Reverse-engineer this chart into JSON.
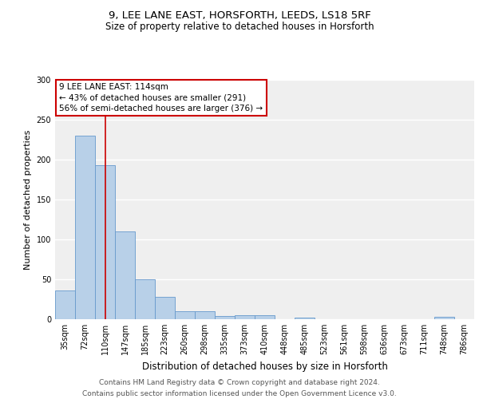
{
  "title1": "9, LEE LANE EAST, HORSFORTH, LEEDS, LS18 5RF",
  "title2": "Size of property relative to detached houses in Horsforth",
  "xlabel": "Distribution of detached houses by size in Horsforth",
  "ylabel": "Number of detached properties",
  "bar_labels": [
    "35sqm",
    "72sqm",
    "110sqm",
    "147sqm",
    "185sqm",
    "223sqm",
    "260sqm",
    "298sqm",
    "335sqm",
    "373sqm",
    "410sqm",
    "448sqm",
    "485sqm",
    "523sqm",
    "561sqm",
    "598sqm",
    "636sqm",
    "673sqm",
    "711sqm",
    "748sqm",
    "786sqm"
  ],
  "bar_values": [
    36,
    230,
    193,
    110,
    50,
    28,
    10,
    10,
    4,
    5,
    5,
    0,
    2,
    0,
    0,
    0,
    0,
    0,
    0,
    3,
    0
  ],
  "bar_color": "#b8d0e8",
  "bar_edgecolor": "#6699cc",
  "vline_x": 2,
  "vline_color": "#cc0000",
  "annotation_text": "9 LEE LANE EAST: 114sqm\n← 43% of detached houses are smaller (291)\n56% of semi-detached houses are larger (376) →",
  "annotation_box_edgecolor": "#cc0000",
  "annotation_box_facecolor": "white",
  "footer_text": "Contains HM Land Registry data © Crown copyright and database right 2024.\nContains public sector information licensed under the Open Government Licence v3.0.",
  "ylim": [
    0,
    300
  ],
  "yticks": [
    0,
    50,
    100,
    150,
    200,
    250,
    300
  ],
  "background_color": "#efefef",
  "grid_color": "white",
  "title1_fontsize": 9.5,
  "title2_fontsize": 8.5,
  "xlabel_fontsize": 8.5,
  "ylabel_fontsize": 8,
  "tick_fontsize": 7,
  "footer_fontsize": 6.5,
  "annotation_fontsize": 7.5
}
